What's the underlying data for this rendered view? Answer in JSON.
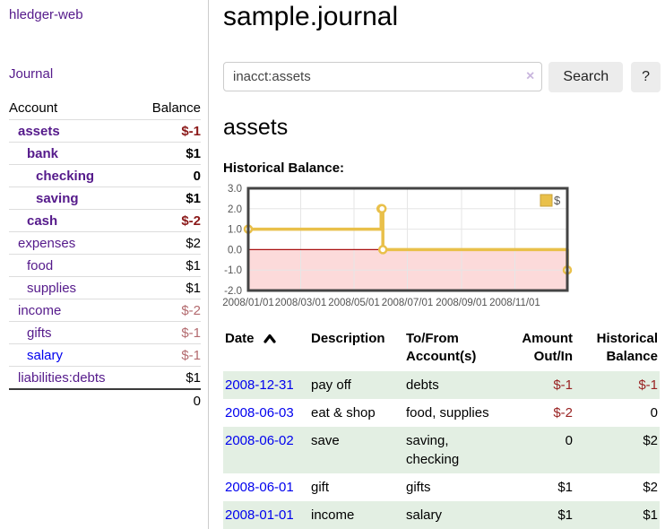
{
  "app": {
    "brand": "hledger-web"
  },
  "nav": {
    "journal": "Journal"
  },
  "sidebar": {
    "col_account": "Account",
    "col_balance": "Balance",
    "rows": [
      {
        "name": "assets",
        "balance": "$-1",
        "indent": 1,
        "bold": true,
        "neg": "strong"
      },
      {
        "name": "bank",
        "balance": "$1",
        "indent": 2,
        "bold": true
      },
      {
        "name": "checking",
        "balance": "0",
        "indent": 3,
        "bold": true
      },
      {
        "name": "saving",
        "balance": "$1",
        "indent": 3,
        "bold": true
      },
      {
        "name": "cash",
        "balance": "$-2",
        "indent": 2,
        "bold": true,
        "neg": "strong"
      },
      {
        "name": "expenses",
        "balance": "$2",
        "indent": 1
      },
      {
        "name": "food",
        "balance": "$1",
        "indent": 2
      },
      {
        "name": "supplies",
        "balance": "$1",
        "indent": 2
      },
      {
        "name": "income",
        "balance": "$-2",
        "indent": 1,
        "neg": "soft"
      },
      {
        "name": "gifts",
        "balance": "$-1",
        "indent": 2,
        "neg": "soft"
      },
      {
        "name": "salary",
        "balance": "$-1",
        "indent": 2,
        "neg": "soft",
        "link": "blue"
      },
      {
        "name": "liabilities:debts",
        "balance": "$1",
        "indent": 1
      }
    ],
    "total": "0"
  },
  "header": {
    "title": "sample.journal"
  },
  "search": {
    "value": "inacct:assets",
    "clear_icon": "×",
    "button": "Search",
    "help": "?"
  },
  "main": {
    "heading": "assets",
    "chart_label": "Historical Balance:"
  },
  "chart_data": {
    "type": "line",
    "style": "step-after",
    "title": "Historical Balance",
    "series": [
      {
        "name": "$",
        "color": "#e9c04a",
        "points": [
          [
            "2008-01-01",
            1
          ],
          [
            "2008-06-01",
            2
          ],
          [
            "2008-06-02",
            2
          ],
          [
            "2008-06-03",
            0
          ],
          [
            "2008-12-31",
            -1
          ]
        ]
      }
    ],
    "xlim": [
      "2008-01-01",
      "2008-12-31"
    ],
    "ylim": [
      -2,
      3
    ],
    "x_ticks": [
      "2008/01/01",
      "2008/03/01",
      "2008/05/01",
      "2008/07/01",
      "2008/09/01",
      "2008/11/01"
    ],
    "y_ticks": [
      3.0,
      2.0,
      1.0,
      0.0,
      -1.0,
      -2.0
    ],
    "grid": true,
    "legend_position": "top-right",
    "negative_region_color": "#fcdada",
    "zero_line_color": "#aa1111",
    "grid_color": "#e6e6e6",
    "border_color": "#444444"
  },
  "register": {
    "headers": {
      "date": "Date",
      "description": "Description",
      "accounts": "To/From Account(s)",
      "amount": "Amount Out/In",
      "balance": "Historical Balance"
    },
    "rows": [
      {
        "date": "2008-12-31",
        "description": "pay off",
        "accounts": "debts",
        "amount": "$-1",
        "balance": "$-1"
      },
      {
        "date": "2008-06-03",
        "description": "eat & shop",
        "accounts": "food, supplies",
        "amount": "$-2",
        "balance": "0"
      },
      {
        "date": "2008-06-02",
        "description": "save",
        "accounts": "saving, checking",
        "amount": "0",
        "balance": "$2"
      },
      {
        "date": "2008-06-01",
        "description": "gift",
        "accounts": "gifts",
        "amount": "$1",
        "balance": "$2"
      },
      {
        "date": "2008-01-01",
        "description": "income",
        "accounts": "salary",
        "amount": "$1",
        "balance": "$1"
      }
    ]
  }
}
